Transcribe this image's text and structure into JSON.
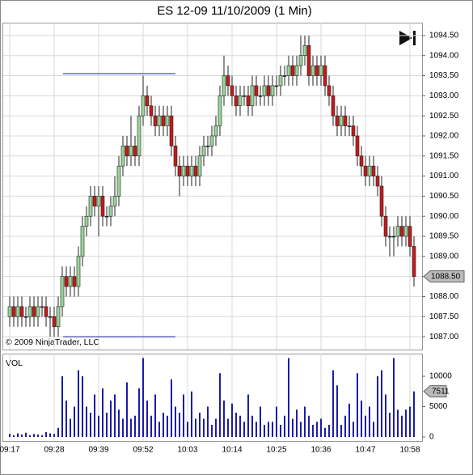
{
  "chart_data": [
    {
      "type": "candlestick",
      "title": "ES 12-09  11/10/2009 (1 Min)",
      "copyright": "© 2009 NinjaTrader, LLC",
      "up_color": "#9ad69a",
      "down_color": "#c41a1a",
      "level_color": "#1c1c9c",
      "levels": [
        1093.55,
        1087.0
      ],
      "last_price": {
        "value": 1088.5,
        "label": "1088.50"
      },
      "ylim": [
        1086.68,
        1094.82
      ],
      "yticks": [
        {
          "value": 1087,
          "label": "1087.00"
        },
        {
          "value": 1087.5,
          "label": "1087.50"
        },
        {
          "value": 1088,
          "label": "1088.00"
        },
        {
          "value": 1088.5,
          "label": "1088.50"
        },
        {
          "value": 1089,
          "label": "1089.00"
        },
        {
          "value": 1089.5,
          "label": "1089.50"
        },
        {
          "value": 1090,
          "label": "1090.00"
        },
        {
          "value": 1090.5,
          "label": "1090.50"
        },
        {
          "value": 1091,
          "label": "1091.00"
        },
        {
          "value": 1091.5,
          "label": "1091.50"
        },
        {
          "value": 1092,
          "label": "1092.00"
        },
        {
          "value": 1092.5,
          "label": "1092.50"
        },
        {
          "value": 1093,
          "label": "1093.00"
        },
        {
          "value": 1093.5,
          "label": "1093.50"
        },
        {
          "value": 1094,
          "label": "1094.00"
        },
        {
          "value": 1094.5,
          "label": "1094.50"
        }
      ],
      "grid": true,
      "ohlc": [
        [
          1087.5,
          1088,
          1087.25,
          1087.75
        ],
        [
          1087.75,
          1088,
          1087.25,
          1087.5
        ],
        [
          1087.5,
          1088,
          1087.25,
          1087.75
        ],
        [
          1087.75,
          1088,
          1087.25,
          1087.5
        ],
        [
          1087.5,
          1087.75,
          1087.25,
          1087.5
        ],
        [
          1087.5,
          1088,
          1087.25,
          1087.75
        ],
        [
          1087.75,
          1088,
          1087.25,
          1087.5
        ],
        [
          1087.5,
          1088,
          1087.25,
          1087.75
        ],
        [
          1087.75,
          1088,
          1087.5,
          1087.75
        ],
        [
          1087.75,
          1088,
          1087.25,
          1087.5
        ],
        [
          1087.5,
          1087.75,
          1087,
          1087.5
        ],
        [
          1087.5,
          1087.75,
          1087,
          1087.25
        ],
        [
          1087.25,
          1088,
          1087,
          1087.75
        ],
        [
          1087.75,
          1088.75,
          1087.5,
          1088.5
        ],
        [
          1088.5,
          1088.75,
          1088,
          1088.25
        ],
        [
          1088.25,
          1088.75,
          1088,
          1088.5
        ],
        [
          1088.5,
          1088.75,
          1088,
          1088.25
        ],
        [
          1088.25,
          1089.25,
          1088,
          1089
        ],
        [
          1089,
          1090,
          1088.75,
          1089.75
        ],
        [
          1089.75,
          1090.25,
          1089.5,
          1090
        ],
        [
          1090,
          1090.75,
          1089.75,
          1090.5
        ],
        [
          1090.5,
          1090.75,
          1090,
          1090.25
        ],
        [
          1090.25,
          1090.75,
          1089.5,
          1090.5
        ],
        [
          1090.5,
          1090.75,
          1089.75,
          1090
        ],
        [
          1090,
          1090.25,
          1089.75,
          1090
        ],
        [
          1090,
          1090.5,
          1089.75,
          1090.25
        ],
        [
          1090.25,
          1091,
          1090,
          1090.5
        ],
        [
          1090.5,
          1091.5,
          1090.25,
          1091.25
        ],
        [
          1091.25,
          1092,
          1091,
          1091.75
        ],
        [
          1091.75,
          1092,
          1091.25,
          1091.5
        ],
        [
          1091.5,
          1092.5,
          1091.25,
          1091.75
        ],
        [
          1091.75,
          1092,
          1091.25,
          1091.5
        ],
        [
          1091.5,
          1092.75,
          1091.25,
          1092.5
        ],
        [
          1092.5,
          1093.5,
          1092.25,
          1093
        ],
        [
          1093,
          1093.25,
          1092.5,
          1092.75
        ],
        [
          1092.75,
          1093,
          1092.25,
          1092.5
        ],
        [
          1092.5,
          1092.75,
          1092,
          1092.25
        ],
        [
          1092.25,
          1092.75,
          1092,
          1092.5
        ],
        [
          1092.5,
          1092.75,
          1092,
          1092.25
        ],
        [
          1092.25,
          1092.75,
          1092,
          1092.5
        ],
        [
          1092.5,
          1092.75,
          1091.5,
          1091.75
        ],
        [
          1091.75,
          1092,
          1091,
          1091.25
        ],
        [
          1091.25,
          1091.5,
          1090.5,
          1091
        ],
        [
          1091,
          1091.5,
          1090.75,
          1091.25
        ],
        [
          1091.25,
          1091.5,
          1090.75,
          1091
        ],
        [
          1091,
          1091.5,
          1090.75,
          1091.25
        ],
        [
          1091.25,
          1091.5,
          1090.75,
          1091
        ],
        [
          1091,
          1091.75,
          1090.75,
          1091.5
        ],
        [
          1091.5,
          1092,
          1091.25,
          1091.75
        ],
        [
          1091.75,
          1092,
          1091.5,
          1091.75
        ],
        [
          1091.75,
          1092.25,
          1091.5,
          1092
        ],
        [
          1092,
          1092.5,
          1091.75,
          1092.25
        ],
        [
          1092.25,
          1093.25,
          1092,
          1093
        ],
        [
          1093,
          1094,
          1092.75,
          1093.5
        ],
        [
          1093.5,
          1093.75,
          1093,
          1093.25
        ],
        [
          1093.25,
          1093.5,
          1092.75,
          1093
        ],
        [
          1093,
          1093.25,
          1092.5,
          1092.75
        ],
        [
          1092.75,
          1093.25,
          1092.5,
          1093
        ],
        [
          1093,
          1093.25,
          1092.75,
          1093
        ],
        [
          1093,
          1093.25,
          1092.5,
          1092.75
        ],
        [
          1092.75,
          1093.5,
          1092.5,
          1093.25
        ],
        [
          1093.25,
          1093.5,
          1092.75,
          1093
        ],
        [
          1093,
          1093.25,
          1092.75,
          1093
        ],
        [
          1093,
          1093.5,
          1092.75,
          1093.25
        ],
        [
          1093.25,
          1093.5,
          1092.75,
          1093
        ],
        [
          1093,
          1093.5,
          1092.75,
          1093.25
        ],
        [
          1093.25,
          1093.5,
          1093,
          1093.25
        ],
        [
          1093.25,
          1093.75,
          1093,
          1093.5
        ],
        [
          1093.5,
          1093.75,
          1093.25,
          1093.5
        ],
        [
          1093.5,
          1094,
          1093.25,
          1093.75
        ],
        [
          1093.75,
          1094,
          1093.25,
          1093.5
        ],
        [
          1093.5,
          1094,
          1093.25,
          1093.75
        ],
        [
          1093.75,
          1094.5,
          1093.5,
          1094
        ],
        [
          1094,
          1094.5,
          1093.75,
          1094.25
        ],
        [
          1094.25,
          1094.5,
          1093.25,
          1093.5
        ],
        [
          1093.5,
          1094,
          1093.25,
          1093.75
        ],
        [
          1093.75,
          1094,
          1093.25,
          1093.5
        ],
        [
          1093.5,
          1094,
          1093.25,
          1093.75
        ],
        [
          1093.75,
          1094,
          1093,
          1093.25
        ],
        [
          1093.25,
          1093.5,
          1092.75,
          1093
        ],
        [
          1093,
          1093.25,
          1092.25,
          1092.5
        ],
        [
          1092.5,
          1092.75,
          1092,
          1092.25
        ],
        [
          1092.25,
          1092.75,
          1092,
          1092.5
        ],
        [
          1092.5,
          1092.75,
          1092,
          1092.25
        ],
        [
          1092.25,
          1092.5,
          1092,
          1092.25
        ],
        [
          1092.25,
          1092.5,
          1091.75,
          1092
        ],
        [
          1092,
          1092.25,
          1091.25,
          1091.5
        ],
        [
          1091.5,
          1091.75,
          1091,
          1091.25
        ],
        [
          1091.25,
          1091.5,
          1090.75,
          1091
        ],
        [
          1091,
          1091.5,
          1090.75,
          1091.25
        ],
        [
          1091.25,
          1091.5,
          1090.75,
          1091
        ],
        [
          1091,
          1091.25,
          1090.5,
          1090.75
        ],
        [
          1090.75,
          1091,
          1089.75,
          1090
        ],
        [
          1090,
          1090.25,
          1089.25,
          1089.5
        ],
        [
          1089.5,
          1089.75,
          1089,
          1089.5
        ],
        [
          1089.5,
          1089.75,
          1089,
          1089.5
        ],
        [
          1089.5,
          1090,
          1089.25,
          1089.75
        ],
        [
          1089.75,
          1090,
          1089.25,
          1089.5
        ],
        [
          1089.5,
          1090,
          1089.25,
          1089.75
        ],
        [
          1089.75,
          1090,
          1089,
          1089.25
        ],
        [
          1089.25,
          1089.5,
          1088.25,
          1088.5
        ]
      ]
    },
    {
      "type": "bar",
      "label": "VOL",
      "color": "#1c1caa",
      "ylim": [
        -667,
        13733
      ],
      "yticks": [
        0,
        5000,
        10000
      ],
      "last_value": 7511,
      "categories": [
        "09:17",
        null,
        null,
        null,
        null,
        null,
        null,
        null,
        null,
        null,
        null,
        "09:28",
        null,
        null,
        null,
        null,
        null,
        null,
        null,
        null,
        null,
        null,
        "09:39",
        null,
        null,
        null,
        null,
        null,
        null,
        null,
        null,
        null,
        null,
        "09:52",
        null,
        null,
        null,
        null,
        null,
        null,
        null,
        null,
        null,
        null,
        "10:03",
        null,
        null,
        null,
        null,
        null,
        null,
        null,
        null,
        null,
        null,
        "10:14",
        null,
        null,
        null,
        null,
        null,
        null,
        null,
        null,
        null,
        null,
        "10:25",
        null,
        null,
        null,
        null,
        null,
        null,
        null,
        null,
        null,
        null,
        "10:36",
        null,
        null,
        null,
        null,
        null,
        null,
        null,
        null,
        null,
        null,
        "10:47",
        null,
        null,
        null,
        null,
        null,
        null,
        null,
        null,
        null,
        null,
        "10:58",
        null
      ],
      "values": [
        500,
        300,
        600,
        400,
        700,
        300,
        500,
        400,
        300,
        800,
        600,
        500,
        1500,
        10000,
        6000,
        3000,
        5000,
        11000,
        10000,
        5000,
        4000,
        7000,
        3500,
        8000,
        4000,
        6000,
        7000,
        4500,
        3000,
        9000,
        3000,
        3500,
        8000,
        13000,
        6000,
        3500,
        7000,
        2500,
        4000,
        3500,
        9500,
        5000,
        4000,
        7000,
        2500,
        7500,
        3000,
        4000,
        3000,
        5000,
        2000,
        3000,
        10500,
        6000,
        3000,
        5500,
        4000,
        3500,
        2500,
        7000,
        3500,
        2500,
        5000,
        2000,
        2500,
        2500,
        5000,
        2000,
        3500,
        13000,
        3000,
        4500,
        2500,
        5000,
        3500,
        2000,
        2500,
        3000,
        1500,
        2000,
        11000,
        8500,
        2000,
        3500,
        5500,
        2500,
        10500,
        6000,
        3500,
        5000,
        2500,
        10000,
        11000,
        7000,
        4000,
        13000,
        4500,
        3500,
        4500,
        5000,
        7511
      ]
    }
  ]
}
